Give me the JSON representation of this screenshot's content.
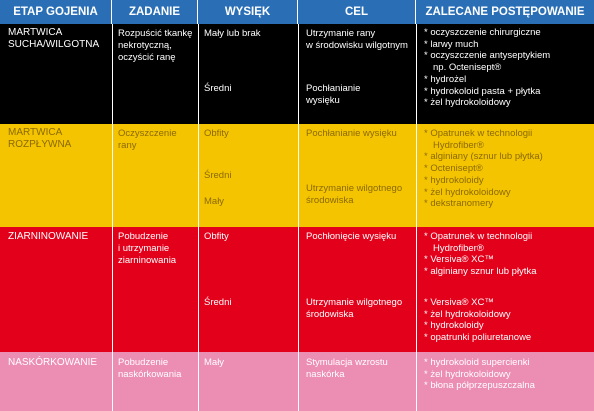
{
  "headers": [
    "ETAP GOJENIA",
    "ZADANIE",
    "WYSIĘK",
    "CEL",
    "ZALECANE POSTĘPOWANIE"
  ],
  "colors": {
    "header": "#2a6fb6",
    "black": "#000000",
    "yellow": "#f5c400",
    "red": "#e3001b",
    "pink": "#ec8db4"
  },
  "rows": {
    "martwica_sucha": {
      "stage": [
        "MARTWICA",
        "SUCHA/WILGOTNA"
      ],
      "task": [
        "Rozpuścić tkankę",
        "nekrotyczną,",
        "oczyścić ranę"
      ],
      "exudate_1": "Mały lub brak",
      "goal_1": [
        "Utrzymanie rany",
        "w środowisku wilgotnym"
      ],
      "exudate_2": "Średni",
      "goal_2": [
        "Pochłanianie",
        "wysięku"
      ],
      "actions": [
        "* oczyszczenie chirurgiczne",
        "* larwy much",
        "* oczyszczenie antyseptykiem",
        "np. Octenisept®",
        "* hydrożel",
        "* hydrokoloid pasta + płytka",
        "* żel hydrokoloidowy"
      ]
    },
    "martwica_rozplywna": {
      "stage": [
        "MARTWICA",
        "ROZPŁYWNA"
      ],
      "task": [
        "Oczyszczenie",
        "rany"
      ],
      "exudate_1": "Obfity",
      "goal_1": "Pochłanianie wysięku",
      "exudate_2": "Średni",
      "exudate_3": "Mały",
      "goal_2": [
        "Utrzymanie wilgotnego",
        "środowiska"
      ],
      "actions": [
        "* Opatrunek w technologii",
        "Hydrofiber®",
        "* alginiany (sznur lub płytka)",
        "* Octenisept®",
        "* hydrokoloidy",
        "* żel hydrokoloidowy",
        "* dekstranomery"
      ]
    },
    "ziarninowanie": {
      "stage": "ZIARNINOWANIE",
      "task": [
        "Pobudzenie",
        "i utrzymanie",
        "ziarninowania"
      ],
      "exudate_1": "Obfity",
      "goal_1": "Pochłonięcie wysięku",
      "exudate_2": "Średni",
      "goal_2": [
        "Utrzymanie wilgotnego",
        "środowiska"
      ],
      "actions_1": [
        "* Opatrunek w technologii",
        "Hydrofiber®",
        "* Versiva® XC™",
        "* alginiany sznur lub płytka"
      ],
      "actions_2": [
        "* Versiva® XC™",
        "* żel hydrokoloidowy",
        "* hydrokoloidy",
        "* opatrunki poliuretanowe"
      ]
    },
    "naskorkowanie": {
      "stage": "NASKÓRKOWANIE",
      "task": [
        "Pobudzenie",
        "naskórkowania"
      ],
      "exudate_1": "Mały",
      "goal_1": [
        "Stymulacja wzrostu",
        "naskórka"
      ],
      "actions": [
        "* hydrokoloid supercienki",
        "* żel hydrokoloidowy",
        "* błona półprzepuszczalna"
      ]
    }
  }
}
